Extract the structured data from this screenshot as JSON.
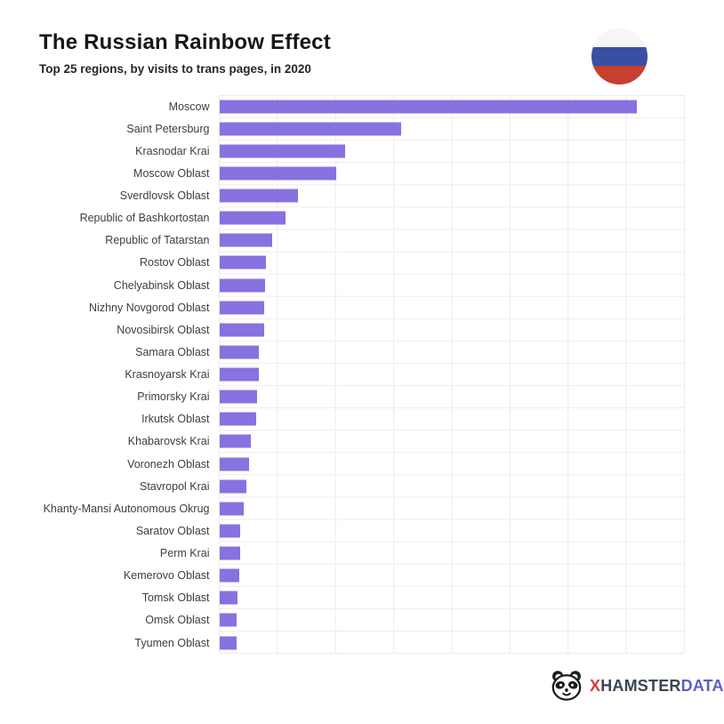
{
  "header": {
    "title": "The Russian Rainbow Effect",
    "subtitle": "Top 25 regions, by visits to trans pages, in 2020",
    "flag_icon": "russia-flag-circle-icon",
    "flag_colors": {
      "white": "#f6f6f6",
      "blue": "#3a4fa4",
      "red": "#c63f2f"
    }
  },
  "chart_data": {
    "type": "bar",
    "orientation": "horizontal",
    "title": "The Russian Rainbow Effect",
    "subtitle": "Top 25 regions, by visits to trans pages, in 2020",
    "xlabel": "",
    "ylabel": "",
    "legend": false,
    "grid": true,
    "x_axis": {
      "tick_labels_visible": false,
      "gridline_intervals": 8,
      "range_pct": [
        0,
        100
      ]
    },
    "bar_color": "#8871e0",
    "categories": [
      "Moscow",
      "Saint Petersburg",
      "Krasnodar Krai",
      "Moscow Oblast",
      "Sverdlovsk Oblast",
      "Republic of Bashkortostan",
      "Republic of Tatarstan",
      "Rostov Oblast",
      "Chelyabinsk Oblast",
      "Nizhny Novgorod Oblast",
      "Novosibirsk Oblast",
      "Samara Oblast",
      "Krasnoyarsk Krai",
      "Primorsky Krai",
      "Irkutsk Oblast",
      "Khabarovsk Krai",
      "Voronezh Oblast",
      "Stavropol Krai",
      "Khanty-Mansi Autonomous Okrug",
      "Saratov Oblast",
      "Perm Krai",
      "Kemerovo Oblast",
      "Tomsk Oblast",
      "Omsk Oblast",
      "Tyumen Oblast"
    ],
    "values_pct_of_axis": [
      89.6,
      38.9,
      26.9,
      25.0,
      16.9,
      14.2,
      11.3,
      10.1,
      9.8,
      9.6,
      9.7,
      8.4,
      8.5,
      8.1,
      8.0,
      6.7,
      6.4,
      5.8,
      5.3,
      4.4,
      4.4,
      4.2,
      3.9,
      3.7,
      3.7
    ]
  },
  "footer": {
    "brand_icon": "hamster-logo-icon",
    "brand_x": "X",
    "brand_hamster": "HAMSTER",
    "brand_data": "DATA"
  }
}
